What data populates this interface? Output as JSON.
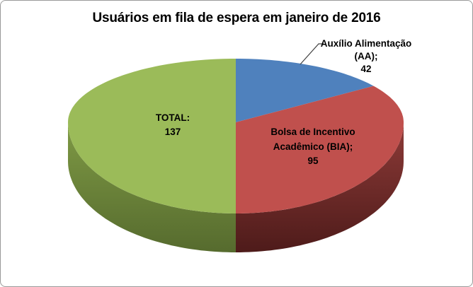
{
  "chart_data": {
    "type": "pie",
    "style": "3d",
    "title": "Usuários em fila de espera em janeiro de 2016",
    "direction": "clockwise",
    "start_angle_deg": 0,
    "legend": "none",
    "slices": [
      {
        "id": "aa",
        "name": "Auxílio Alimentação (AA)",
        "value": 42,
        "color": "#4F81BD",
        "label_lines": [
          "Auxílio Alimentação",
          "(AA);",
          "42"
        ]
      },
      {
        "id": "bia",
        "name": "Bolsa de Incentivo Acadêmico (BIA)",
        "value": 95,
        "color": "#C0504D",
        "side_top": "#8E3B38",
        "side_bottom": "#4E1B1A",
        "label_lines": [
          "Bolsa de Incentivo",
          "Acadêmico (BIA);",
          "95"
        ]
      },
      {
        "id": "total",
        "name": "TOTAL",
        "value": 137,
        "color": "#9BBB59",
        "side_top": "#7F9A45",
        "side_bottom": "#566B2E",
        "label_lines": [
          "TOTAL:",
          "137"
        ]
      }
    ]
  },
  "frame": {
    "border_color": "#999999",
    "background": "#FFFFFF",
    "text_color": "#000000",
    "leader_line_color": "#404040"
  }
}
